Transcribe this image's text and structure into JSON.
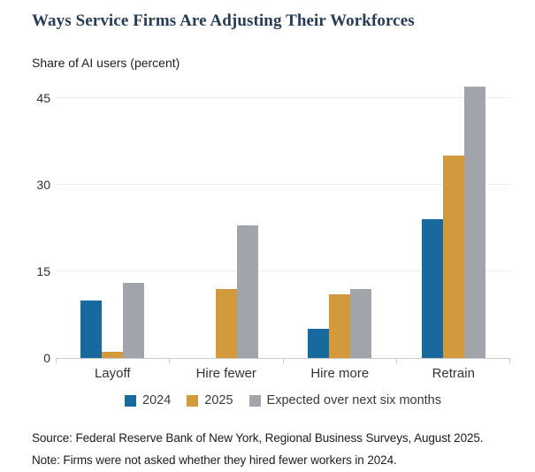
{
  "title": "Ways Service Firms Are Adjusting Their Workforces",
  "chart_data": {
    "type": "bar",
    "title": "Ways Service Firms Are Adjusting Their Workforces",
    "ylabel": "Share of AI users (percent)",
    "xlabel": "",
    "categories": [
      "Layoff",
      "Hire fewer",
      "Hire more",
      "Retrain"
    ],
    "series": [
      {
        "name": "2024",
        "color": "#17699e",
        "values": [
          10,
          null,
          5,
          24
        ]
      },
      {
        "name": "2025",
        "color": "#d39a3d",
        "values": [
          1,
          12,
          11,
          35
        ]
      },
      {
        "name": "Expected over next six months",
        "color": "#a2a4ab",
        "values": [
          13,
          23,
          12,
          47
        ]
      }
    ],
    "yticks": [
      0,
      15,
      30,
      45
    ],
    "ylim": [
      0,
      48
    ],
    "grid": "horizontal",
    "legend_position": "bottom"
  },
  "footer": {
    "source": "Source: Federal Reserve Bank of New York, Regional Business Surveys, August 2025.",
    "note": "Note: Firms were not asked whether they hired fewer workers in 2024."
  }
}
